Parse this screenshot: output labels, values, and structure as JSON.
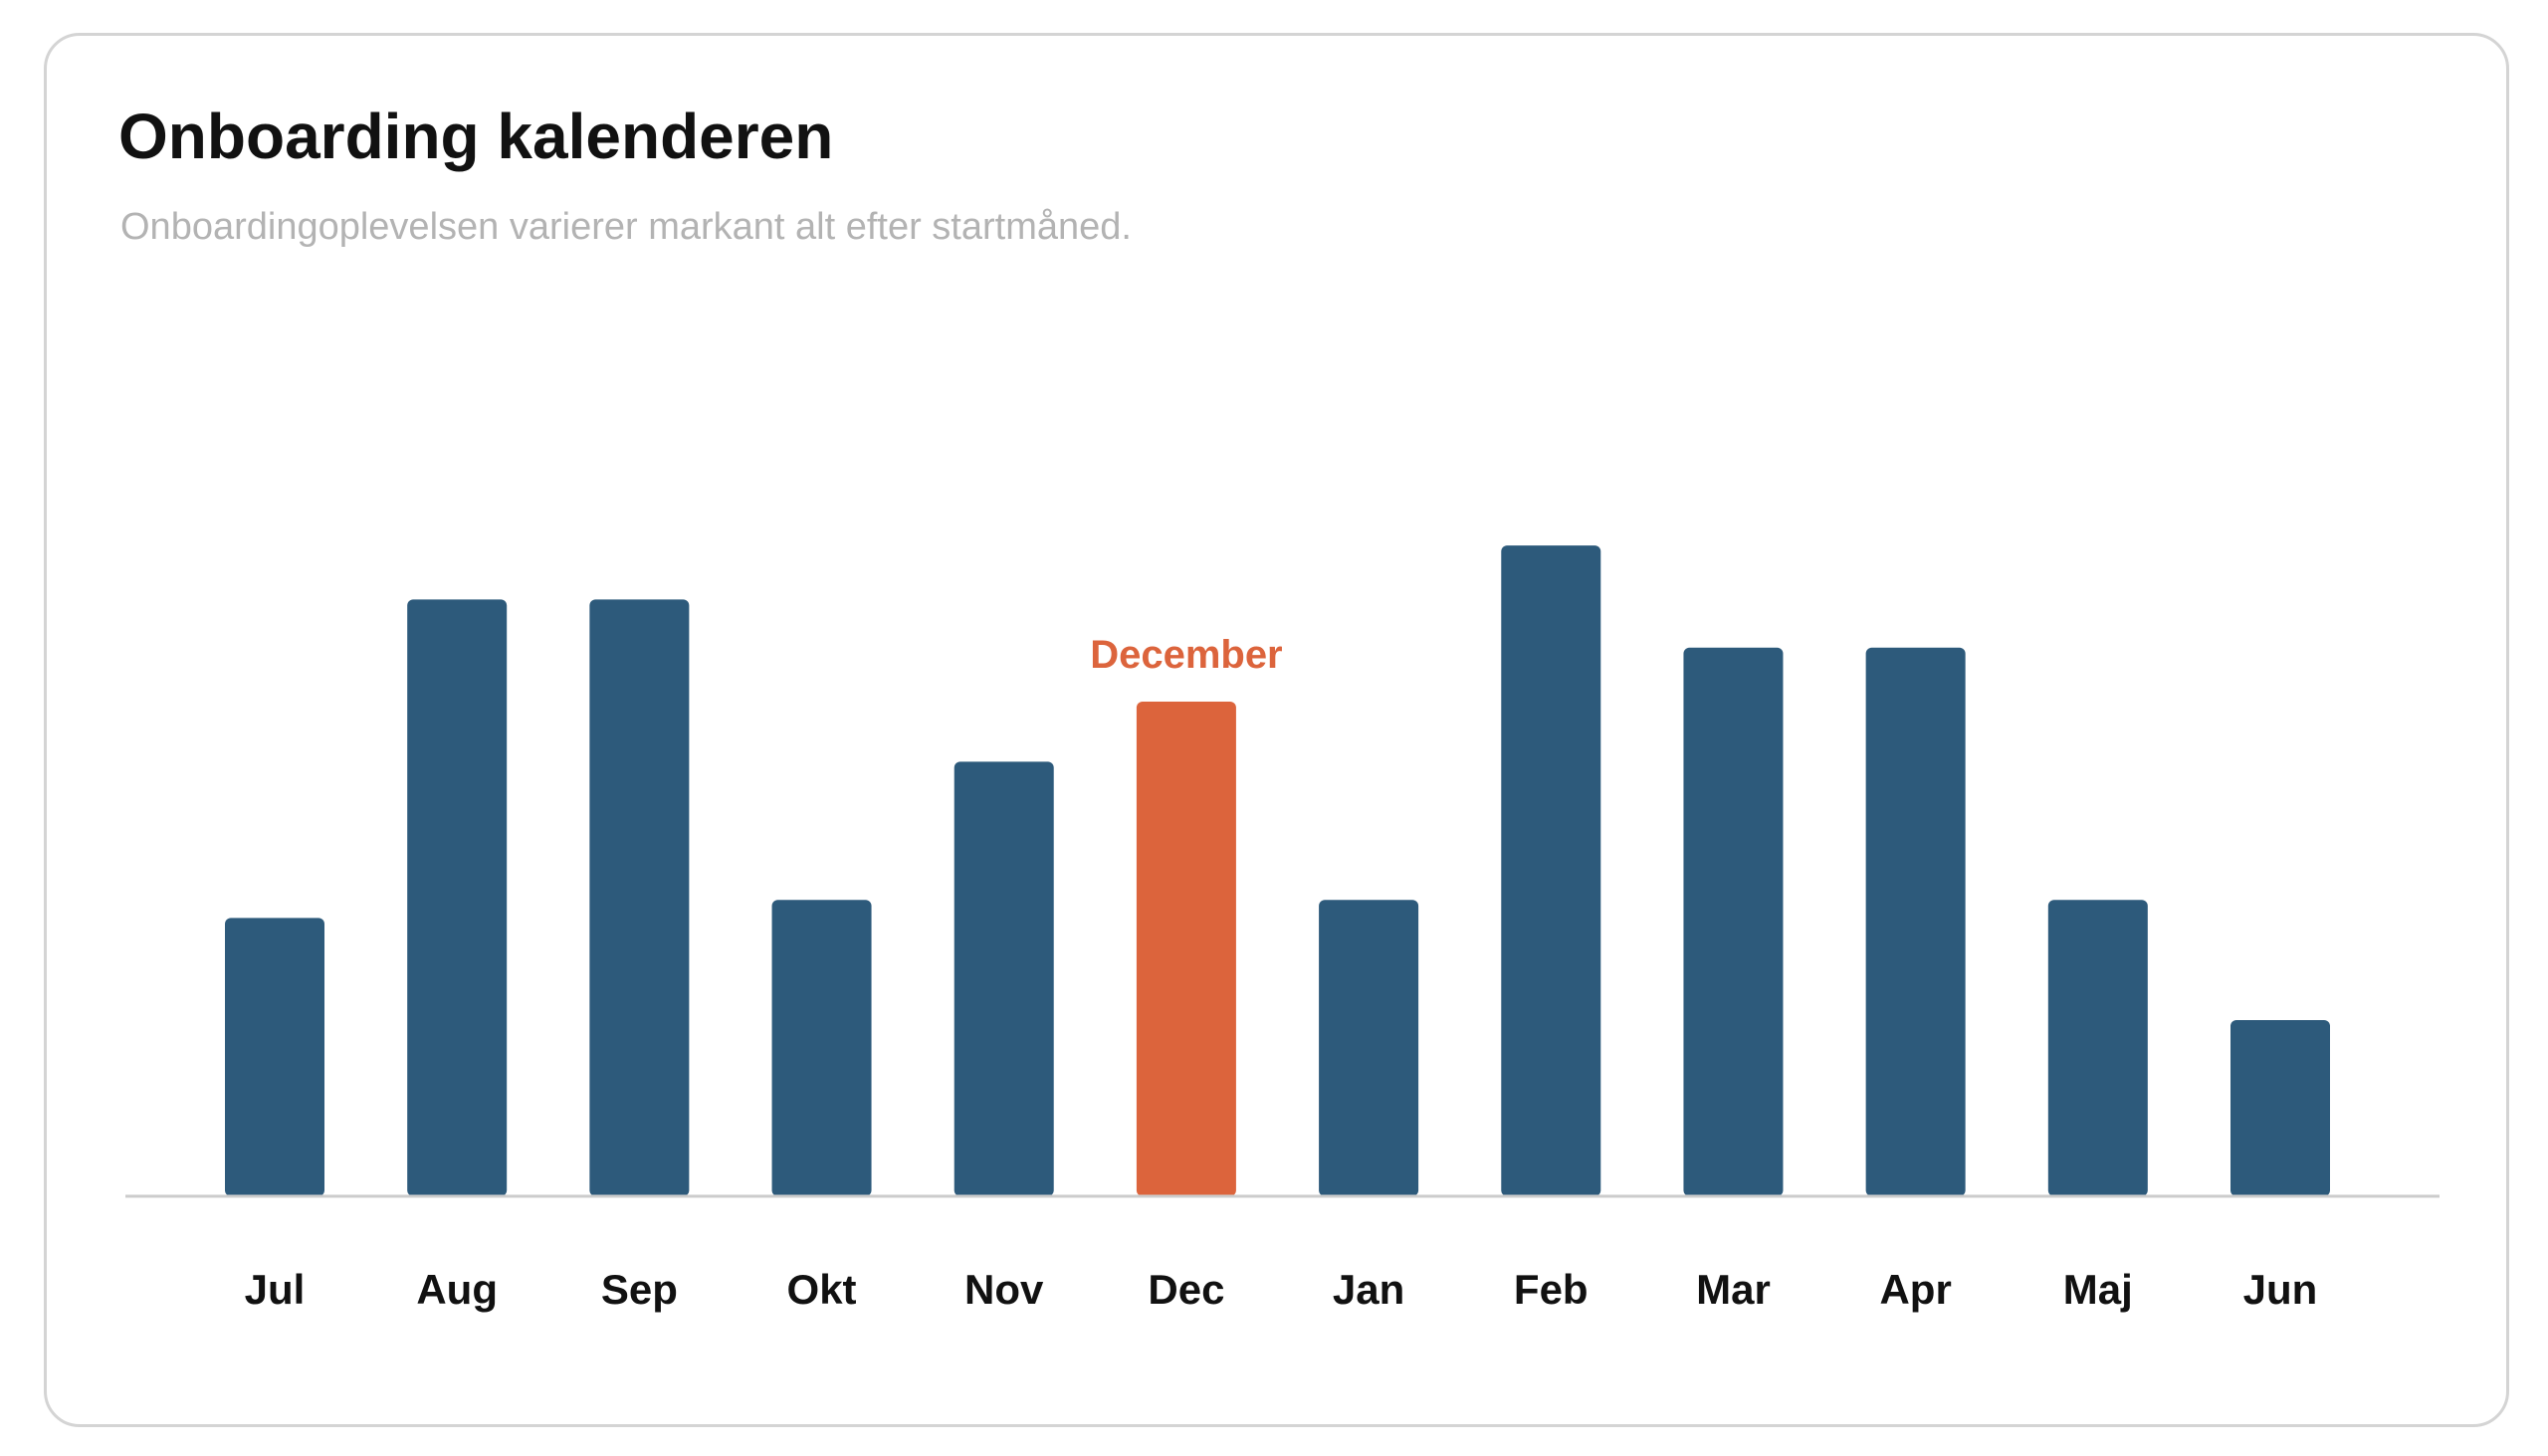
{
  "header": {
    "title": "Onboarding kalenderen",
    "subtitle": "Onboardingoplevelsen varierer markant alt efter startmåned."
  },
  "colors": {
    "bar": "#2d5a7b",
    "highlight": "#dc643c",
    "axis": "#cccccc",
    "tick_label": "#111111",
    "annotation": "#dc643c"
  },
  "chart_data": {
    "type": "bar",
    "title": "Onboarding kalenderen",
    "subtitle": "Onboardingoplevelsen varierer markant alt efter startmåned.",
    "categories": [
      "Jul",
      "Aug",
      "Sep",
      "Okt",
      "Nov",
      "Dec",
      "Jan",
      "Feb",
      "Mar",
      "Apr",
      "Maj",
      "Jun"
    ],
    "values": [
      46,
      99,
      99,
      49,
      72,
      82,
      49,
      108,
      91,
      91,
      49,
      29
    ],
    "ylim": [
      0,
      110
    ],
    "highlight_index": 5,
    "annotation": {
      "category": "Dec",
      "text": "December"
    },
    "xlabel": "",
    "ylabel": "",
    "grid": false,
    "legend": "none"
  }
}
